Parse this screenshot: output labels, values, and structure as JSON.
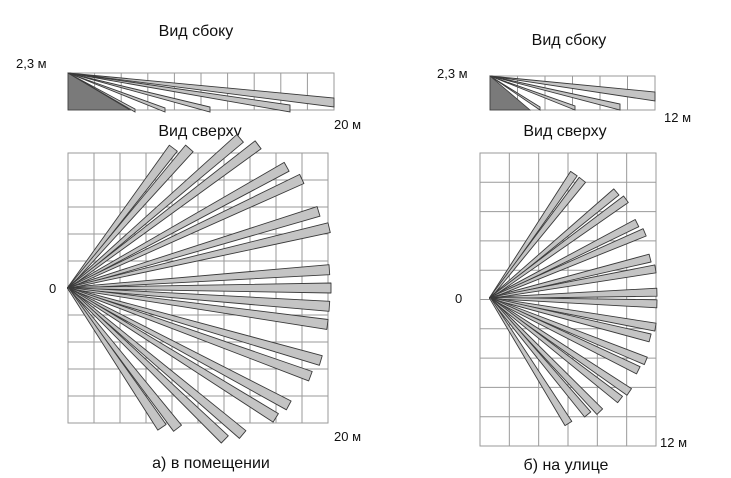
{
  "panels": [
    {
      "id": "indoor",
      "side_title": "Вид сбоку",
      "top_title": "Вид сверху",
      "height_label": "2,3 м",
      "side_range_label": "20 м",
      "top_range_label": "20 м",
      "origin_label": "0",
      "caption": "а) в помещении",
      "range_m": 20,
      "height_m": 2.3
    },
    {
      "id": "outdoor",
      "side_title": "Вид сбоку",
      "top_title": "Вид сверху",
      "height_label": "2,3 м",
      "side_range_label": "12 м",
      "top_range_label": "12 м",
      "origin_label": "0",
      "caption": "б) на улице",
      "range_m": 12,
      "height_m": 2.3
    }
  ],
  "colors": {
    "beam_fill": "#c4c4c4",
    "beam_stroke": "#3a3a3a",
    "shade_fill": "#7a7a7a",
    "grid": "#9a9a9a"
  }
}
